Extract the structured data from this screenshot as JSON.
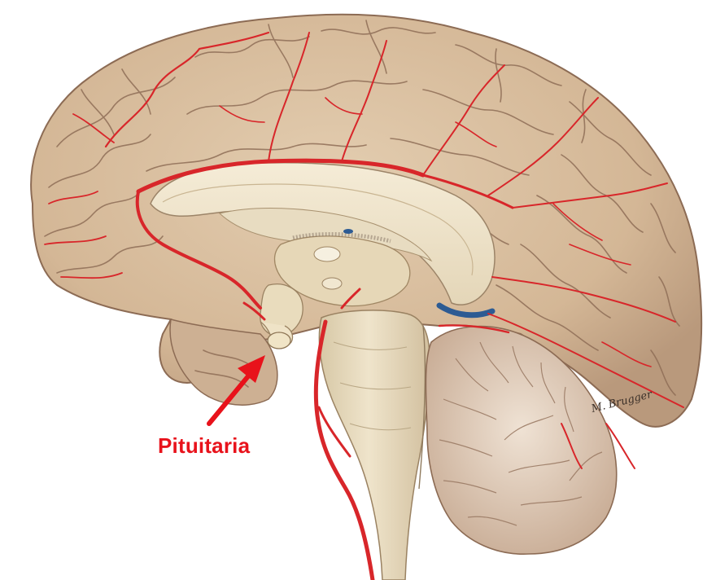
{
  "annotation": {
    "label": "Pituitaria",
    "color": "#e8121b"
  },
  "signature": "M. Brugger",
  "palette": {
    "cortex": "#d9bf9f",
    "cortex_shadow": "#b8977a",
    "cortex_dark": "#8c6b54",
    "vessel": "#d8262a",
    "white_matter": "#f1e6cc",
    "brainstem": "#e9dcc0",
    "cerebellum": "#d7c0ab",
    "ventricle_blue": "#2d5b93"
  },
  "icons": {
    "arrow": "pointer-arrow-icon"
  }
}
